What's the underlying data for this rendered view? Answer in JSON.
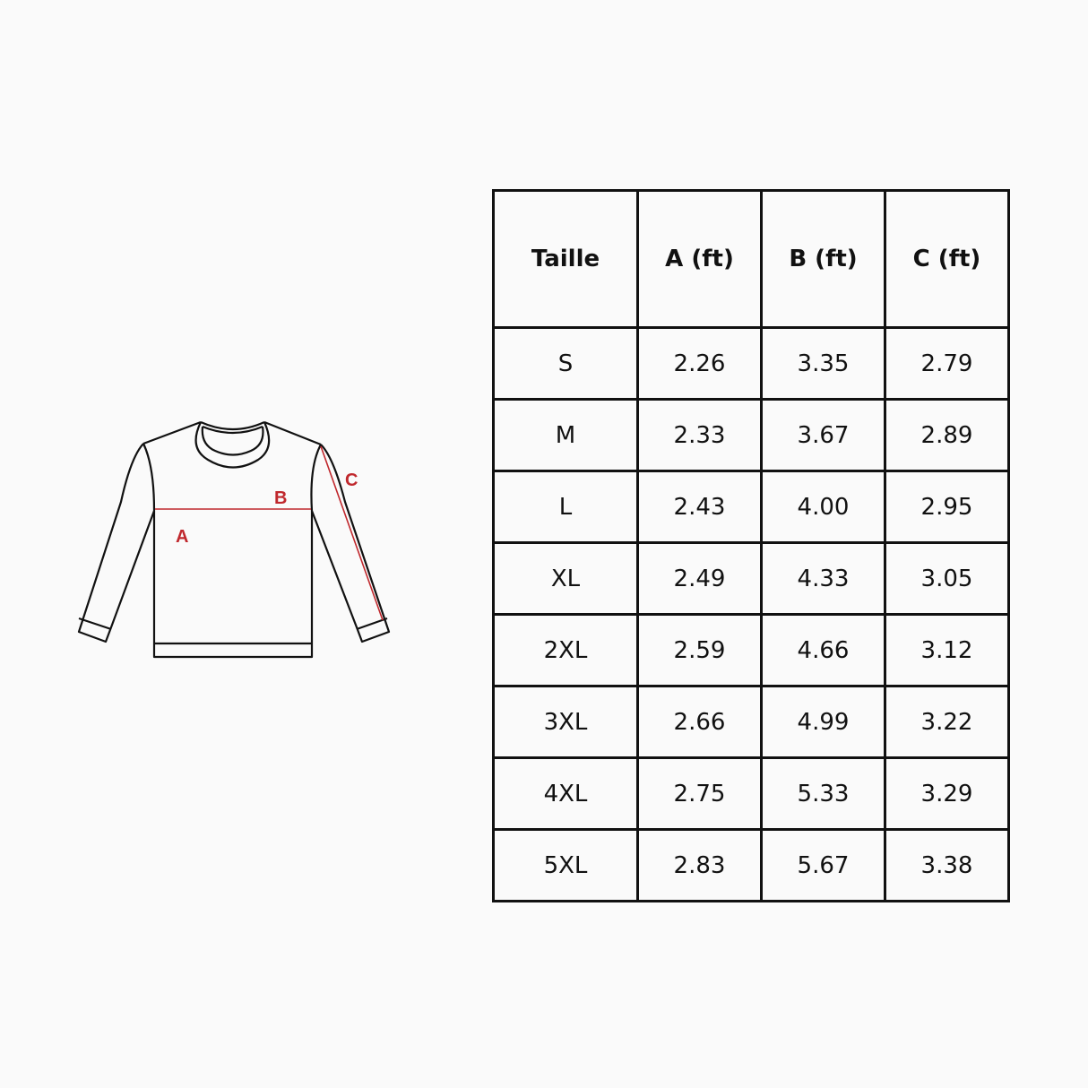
{
  "diagram": {
    "labels": {
      "a": "A",
      "b": "B",
      "c": "C"
    },
    "accent_color": "#c0282d",
    "line_color": "#111111"
  },
  "table": {
    "headers": [
      "Taille",
      "A (ft)",
      "B (ft)",
      "C (ft)"
    ],
    "rows": [
      [
        "S",
        "2.26",
        "3.35",
        "2.79"
      ],
      [
        "M",
        "2.33",
        "3.67",
        "2.89"
      ],
      [
        "L",
        "2.43",
        "4.00",
        "2.95"
      ],
      [
        "XL",
        "2.49",
        "4.33",
        "3.05"
      ],
      [
        "2XL",
        "2.59",
        "4.66",
        "3.12"
      ],
      [
        "3XL",
        "2.66",
        "4.99",
        "3.22"
      ],
      [
        "4XL",
        "2.75",
        "5.33",
        "3.29"
      ],
      [
        "5XL",
        "2.83",
        "5.67",
        "3.38"
      ]
    ]
  }
}
